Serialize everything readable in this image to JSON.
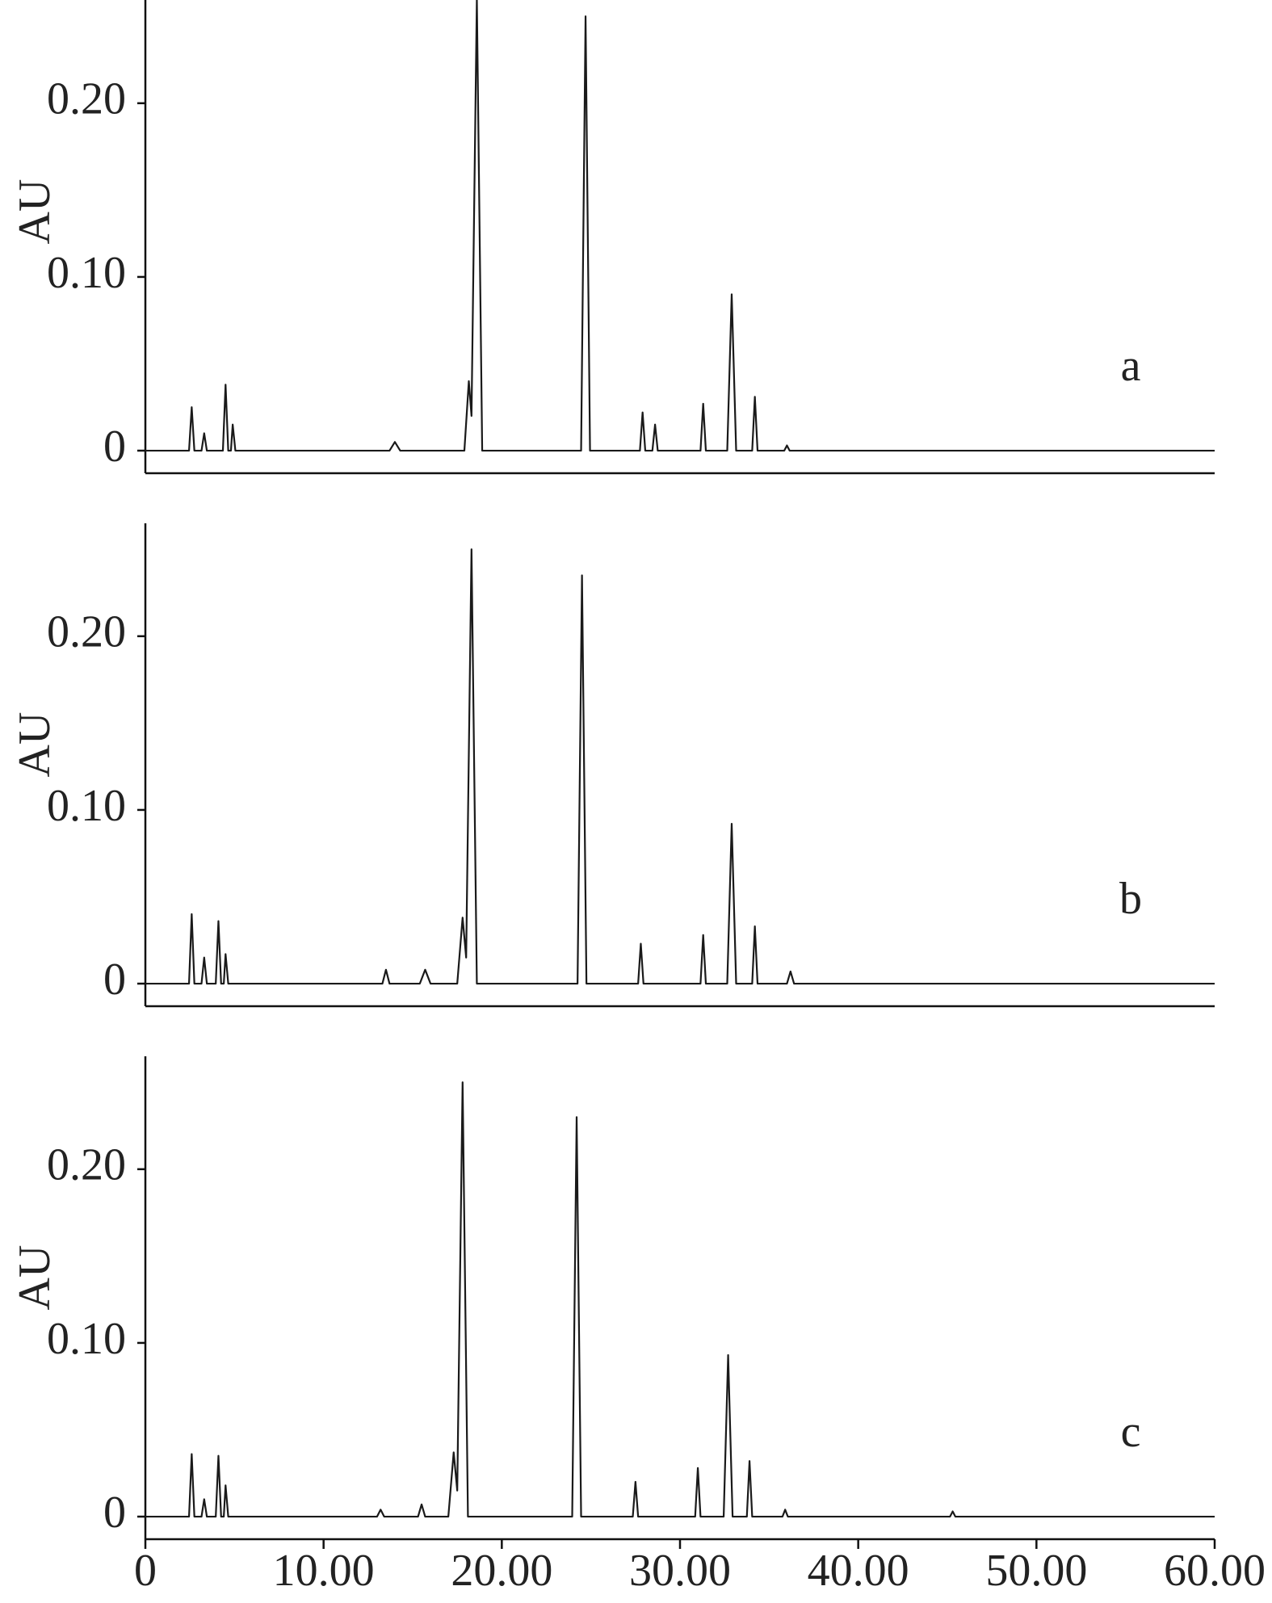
{
  "chart_data": [
    {
      "type": "line",
      "label": "a",
      "y_label": "AU",
      "x": [
        0,
        2.45,
        2.6,
        2.75,
        3.15,
        3.3,
        3.45,
        4.35,
        4.5,
        4.65,
        4.8,
        4.9,
        5.05,
        13.7,
        14,
        14.3,
        17.9,
        18.15,
        18.3,
        18.6,
        18.9,
        24.45,
        24.7,
        24.95,
        27.75,
        27.9,
        28.05,
        28.45,
        28.6,
        28.75,
        31.15,
        31.3,
        31.45,
        32.65,
        32.9,
        33.15,
        34.05,
        34.2,
        34.35,
        35.85,
        36,
        36.15,
        60
      ],
      "series": [
        {
          "color": "#1a1a1a",
          "values": [
            0,
            0,
            0.025,
            0,
            0,
            0.01,
            0,
            0,
            0.038,
            0,
            0,
            0.015,
            0,
            0,
            0.005,
            0,
            0,
            0.04,
            0.02,
            0.26,
            0,
            0,
            0.25,
            0,
            0,
            0.022,
            0,
            0,
            0.015,
            0,
            0,
            0.027,
            0,
            0,
            0.09,
            0,
            0,
            0.031,
            0,
            0,
            0.003,
            0,
            0
          ]
        }
      ],
      "xlim": [
        0,
        60
      ],
      "ylim": [
        -0.013,
        0.265
      ],
      "yticks": [
        0,
        {
          "value": 0.1,
          "label": "0.10"
        },
        {
          "value": 0.2,
          "label": "0.20"
        }
      ]
    },
    {
      "type": "line",
      "label": "b",
      "y_label": "AU",
      "x": [
        0,
        2.45,
        2.6,
        2.75,
        3.15,
        3.3,
        3.45,
        3.95,
        4.1,
        4.25,
        4.4,
        4.5,
        4.65,
        13.3,
        13.5,
        13.7,
        15.4,
        15.7,
        16,
        17.5,
        17.8,
        18.0,
        18.3,
        18.6,
        24.25,
        24.5,
        24.75,
        27.65,
        27.8,
        27.95,
        31.15,
        31.3,
        31.45,
        32.65,
        32.9,
        33.15,
        34.05,
        34.2,
        34.35,
        36.0,
        36.2,
        36.4,
        60
      ],
      "series": [
        {
          "color": "#1a1a1a",
          "values": [
            0,
            0,
            0.04,
            0,
            0,
            0.015,
            0,
            0,
            0.036,
            0,
            0,
            0.017,
            0,
            0,
            0.008,
            0,
            0,
            0.008,
            0,
            0,
            0.038,
            0.015,
            0.25,
            0,
            0,
            0.235,
            0,
            0,
            0.023,
            0,
            0,
            0.028,
            0,
            0,
            0.092,
            0,
            0,
            0.033,
            0,
            0,
            0.007,
            0,
            0
          ]
        }
      ],
      "xlim": [
        0,
        60
      ],
      "ylim": [
        -0.013,
        0.265
      ],
      "yticks": [
        0,
        {
          "value": 0.1,
          "label": "0.10"
        },
        {
          "value": 0.2,
          "label": "0.20"
        }
      ]
    },
    {
      "type": "line",
      "label": "c",
      "y_label": "AU",
      "x": [
        0,
        2.45,
        2.6,
        2.75,
        3.15,
        3.3,
        3.45,
        3.95,
        4.1,
        4.25,
        4.4,
        4.5,
        4.65,
        13.0,
        13.2,
        13.4,
        15.3,
        15.5,
        15.7,
        17.0,
        17.3,
        17.5,
        17.8,
        18.1,
        23.95,
        24.2,
        24.45,
        27.35,
        27.5,
        27.65,
        30.85,
        31.0,
        31.15,
        32.45,
        32.7,
        32.95,
        33.75,
        33.9,
        34.05,
        35.75,
        35.9,
        36.05,
        45.15,
        45.3,
        45.45,
        60
      ],
      "series": [
        {
          "color": "#1a1a1a",
          "values": [
            0,
            0,
            0.036,
            0,
            0,
            0.01,
            0,
            0,
            0.035,
            0,
            0,
            0.018,
            0,
            0,
            0.004,
            0,
            0,
            0.007,
            0,
            0,
            0.037,
            0.015,
            0.25,
            0,
            0,
            0.23,
            0,
            0,
            0.02,
            0,
            0,
            0.028,
            0,
            0,
            0.093,
            0,
            0,
            0.032,
            0,
            0,
            0.004,
            0,
            0,
            0.003,
            0,
            0
          ]
        }
      ],
      "xlim": [
        0,
        60
      ],
      "ylim": [
        -0.013,
        0.265
      ],
      "yticks": [
        0,
        {
          "value": 0.1,
          "label": "0.10"
        },
        {
          "value": 0.2,
          "label": "0.20"
        }
      ],
      "xticks": [
        0,
        {
          "value": 10,
          "label": "10.00"
        },
        {
          "value": 20,
          "label": "20.00"
        },
        {
          "value": 30,
          "label": "30.00"
        },
        {
          "value": 40,
          "label": "40.00"
        },
        {
          "value": 50,
          "label": "50.00"
        },
        {
          "value": 60,
          "label": "60.00"
        }
      ]
    }
  ]
}
